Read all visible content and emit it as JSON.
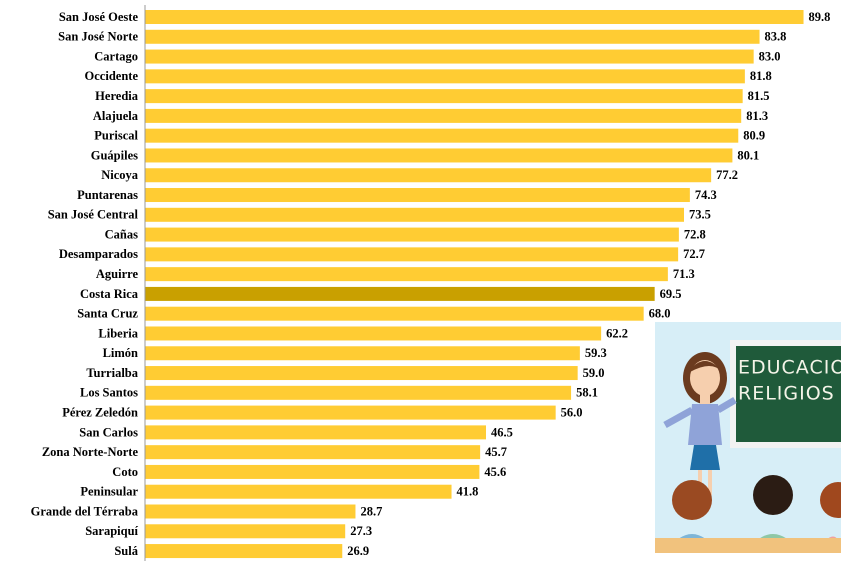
{
  "chart_data": {
    "type": "barh",
    "categories": [
      "San José Oeste",
      "San José Norte",
      "Cartago",
      "Occidente",
      "Heredia",
      "Alajuela",
      "Puriscal",
      "Guápiles",
      "Nicoya",
      "Puntarenas",
      "San José Central",
      "Cañas",
      "Desamparados",
      "Aguirre",
      "Costa Rica",
      "Santa Cruz",
      "Liberia",
      "Limón",
      "Turrialba",
      "Los Santos",
      "Pérez Zeledón",
      "San Carlos",
      "Zona Norte-Norte",
      "Coto",
      "Peninsular",
      "Grande del Térraba",
      "Sarapiquí",
      "Sulá"
    ],
    "values": [
      89.8,
      83.8,
      83.0,
      81.8,
      81.5,
      81.3,
      80.9,
      80.1,
      77.2,
      74.3,
      73.5,
      72.8,
      72.7,
      71.3,
      69.5,
      68.0,
      62.2,
      59.3,
      59.0,
      58.1,
      56.0,
      46.5,
      45.7,
      45.6,
      41.8,
      28.7,
      27.3,
      26.9
    ],
    "value_labels": [
      "89.8",
      "83.8",
      "83.0",
      "81.8",
      "81.5",
      "81.3",
      "80.9",
      "80.1",
      "77.2",
      "74.3",
      "73.5",
      "72.8",
      "72.7",
      "71.3",
      "69.5",
      "68.0",
      "62.2",
      "59.3",
      "59.0",
      "58.1",
      "56.0",
      "46.5",
      "45.7",
      "45.6",
      "41.8",
      "28.7",
      "27.3",
      "26.9"
    ],
    "color": "#FFCC33",
    "highlight": {
      "category": "Costa Rica",
      "color": "#C9A000"
    },
    "xlim": [
      0,
      90
    ],
    "annotations": [
      "EDUCACIO",
      "RELIGIOS"
    ]
  }
}
